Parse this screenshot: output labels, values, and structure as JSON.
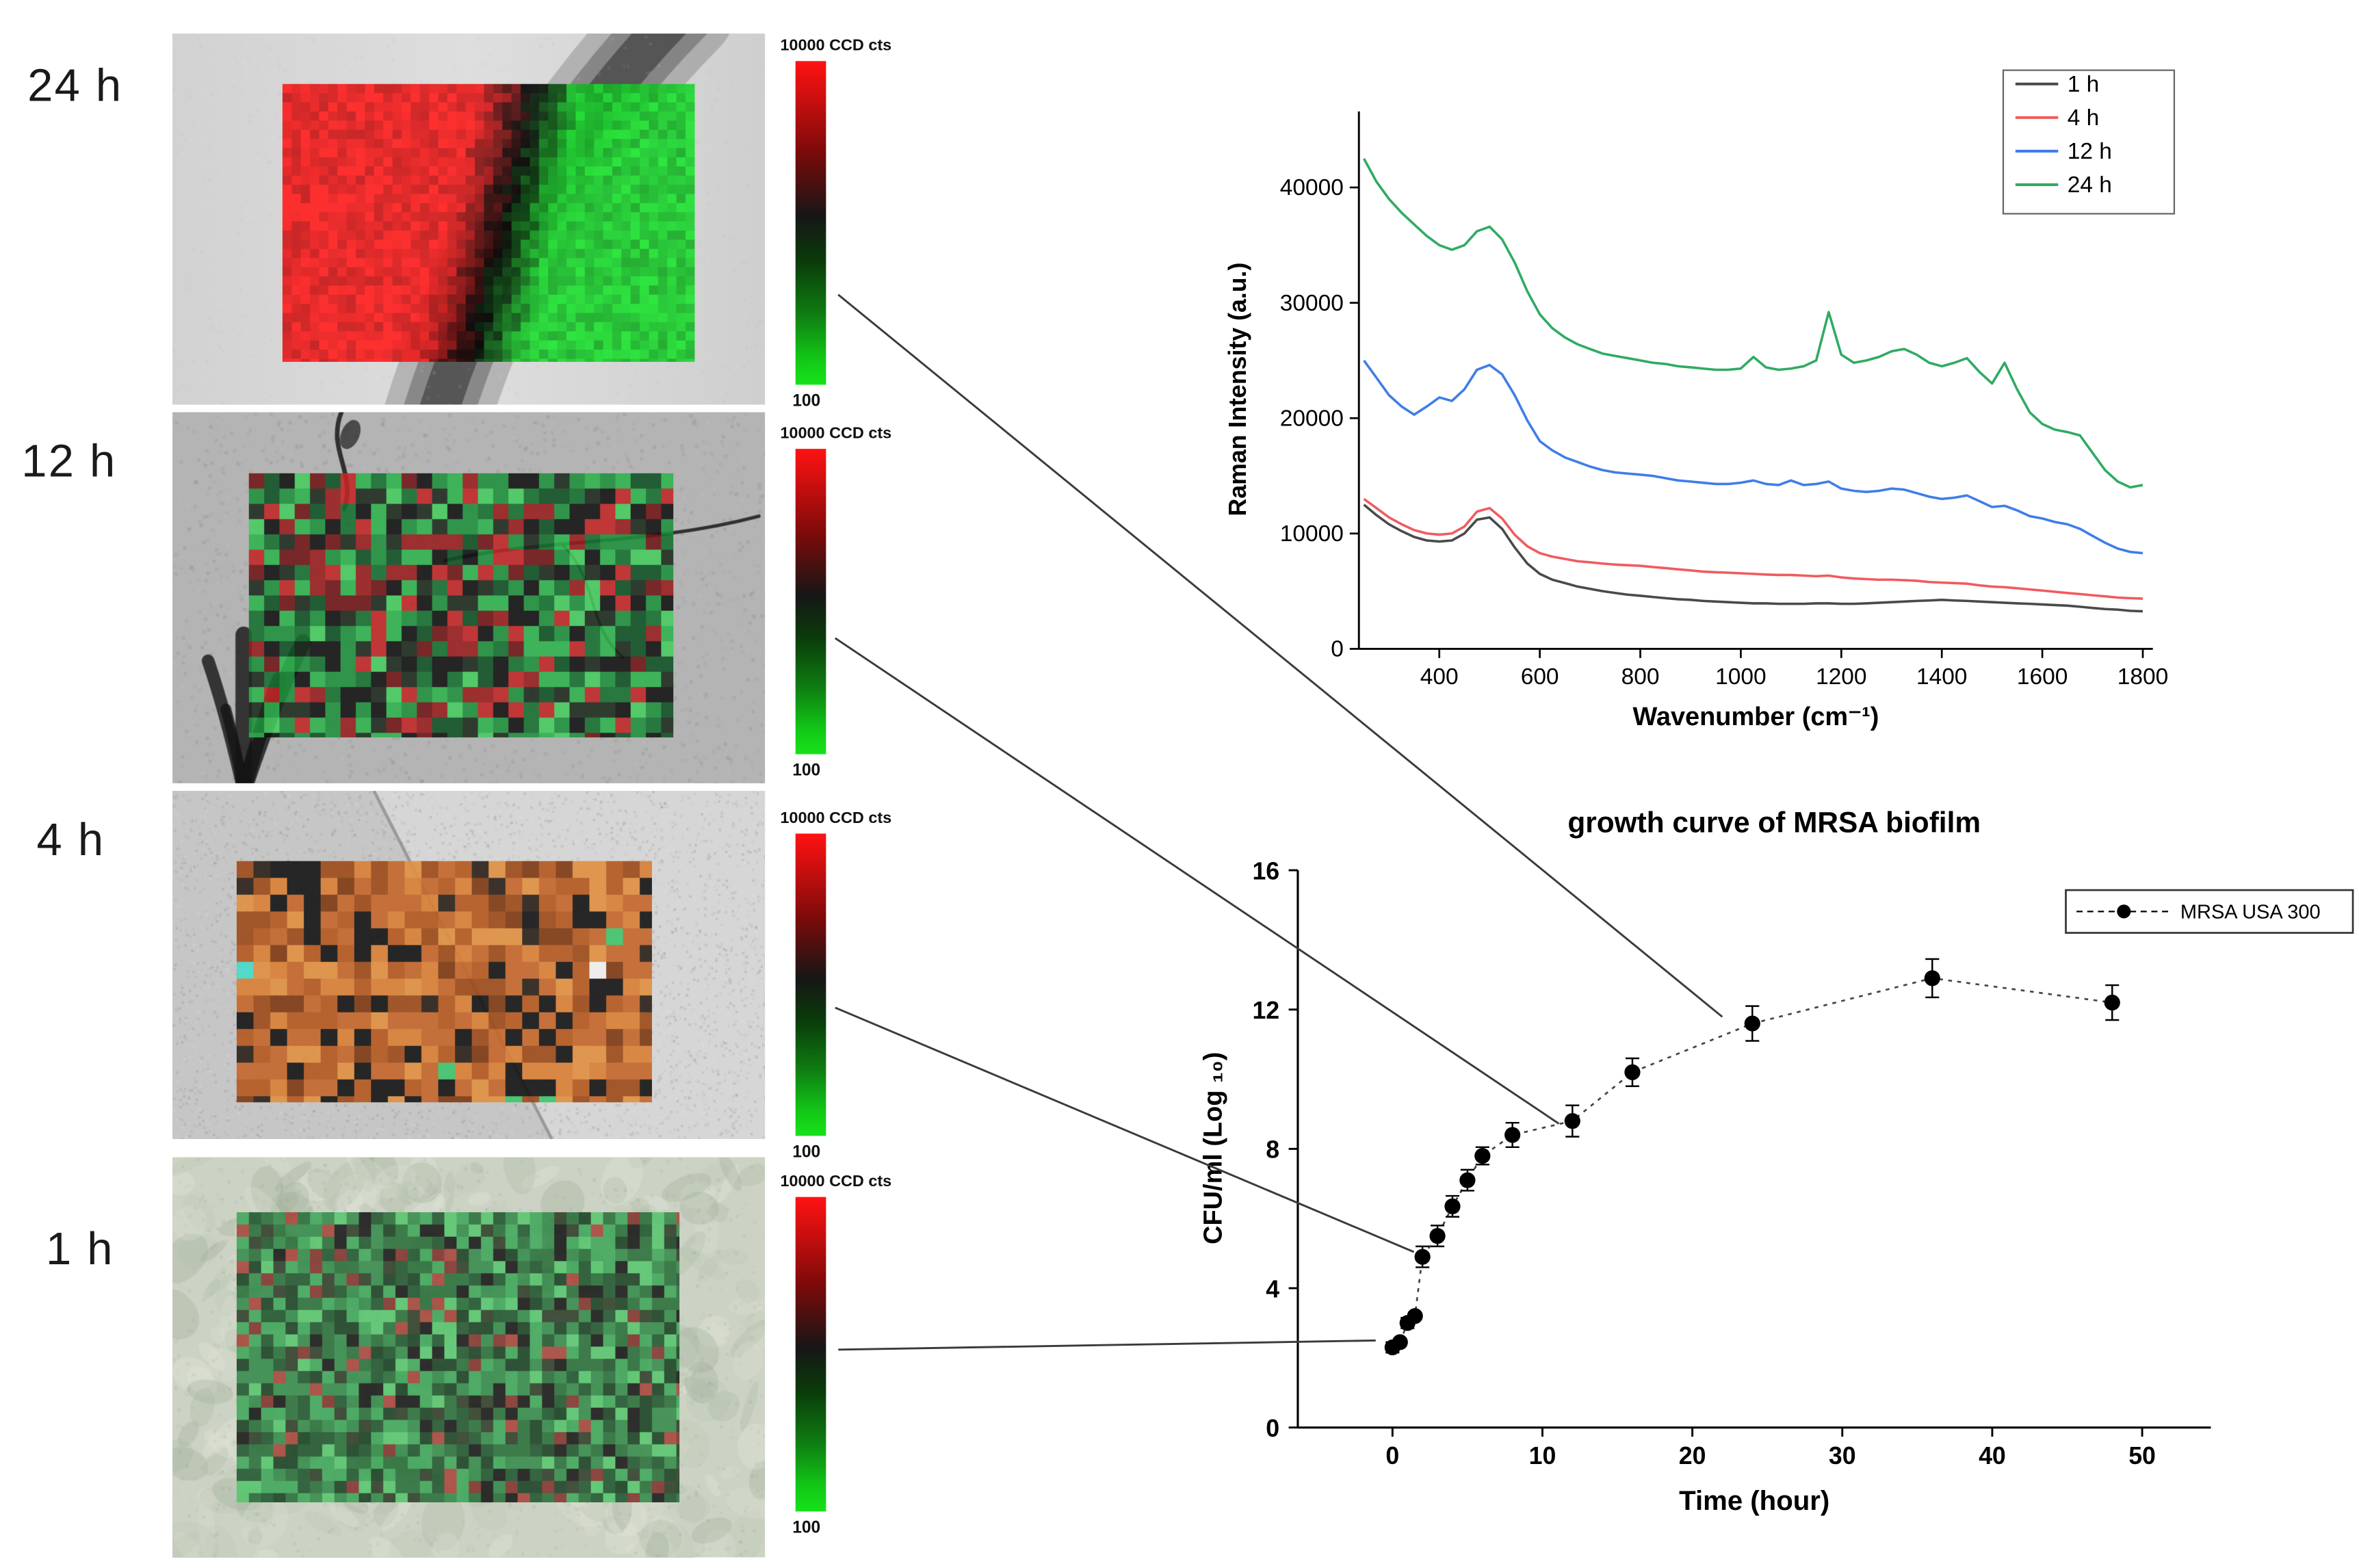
{
  "panels": [
    {
      "label": "24 h",
      "colorbar_top": "10000 CCD cts",
      "colorbar_bottom": "100",
      "photo_style": "diagonal-band",
      "map": {
        "type": "smooth",
        "cell": 6,
        "alpha": 0.93,
        "left": "#e81e1e",
        "mid": "#070707",
        "right": "#1dc92e"
      }
    },
    {
      "label": "12 h",
      "colorbar_top": "10000 CCD cts",
      "colorbar_bottom": "100",
      "photo_style": "cracked-gray",
      "map": {
        "type": "mosaic",
        "cell": 10,
        "alpha": 0.88,
        "palette": [
          [
            "#2eb34d",
            1.6
          ],
          [
            "#1f8f3c",
            1.6
          ],
          [
            "#157030",
            1.2
          ],
          [
            "#0e5123",
            1.0
          ],
          [
            "#45cc5e",
            0.7
          ],
          [
            "#c22525",
            1.0
          ],
          [
            "#981d1d",
            0.9
          ],
          [
            "#6f1515",
            0.7
          ],
          [
            "#111111",
            1.6
          ],
          [
            "#1e2a1e",
            1.2
          ]
        ]
      }
    },
    {
      "label": "4 h",
      "colorbar_top": "10000 CCD cts",
      "colorbar_bottom": "100",
      "photo_style": "grainy-diagonal",
      "map": {
        "type": "mosaic",
        "cell": 11,
        "alpha": 0.9,
        "palette": [
          [
            "#c4662a",
            2.2
          ],
          [
            "#b5581f",
            2.0
          ],
          [
            "#d97e35",
            1.6
          ],
          [
            "#9c4a18",
            1.4
          ],
          [
            "#e09040",
            1.0
          ],
          [
            "#7e3a12",
            0.8
          ],
          [
            "#141414",
            1.8
          ],
          [
            "#2a2118",
            0.8
          ],
          [
            "#3ec46a",
            0.12
          ],
          [
            "#47d9c9",
            0.1
          ],
          [
            "#efefef",
            0.08
          ]
        ]
      }
    },
    {
      "label": "1 h",
      "colorbar_top": "10000 CCD cts",
      "colorbar_bottom": "100",
      "photo_style": "mottled-green",
      "map": {
        "type": "mosaic",
        "cell": 8,
        "alpha": 0.82,
        "palette": [
          [
            "#35a352",
            1.8
          ],
          [
            "#2a8542",
            1.8
          ],
          [
            "#1e6831",
            1.6
          ],
          [
            "#154d24",
            1.4
          ],
          [
            "#0e3718",
            1.2
          ],
          [
            "#4fc468",
            1.0
          ],
          [
            "#0b0b0b",
            0.9
          ],
          [
            "#24331f",
            0.8
          ],
          [
            "#a63a31",
            0.5
          ],
          [
            "#7c2823",
            0.4
          ]
        ]
      }
    }
  ],
  "chart_data": [
    {
      "type": "line",
      "title": "",
      "xlabel": "Wavenumber (cm⁻¹)",
      "ylabel": "Raman Intensity (a.u.)",
      "xlim": [
        240,
        1820
      ],
      "ylim": [
        0,
        45000
      ],
      "xticks": [
        400,
        600,
        800,
        1000,
        1200,
        1400,
        1600,
        1800
      ],
      "yticks": [
        0,
        10000,
        20000,
        30000,
        40000
      ],
      "grid": false,
      "legend_position": "top-right",
      "x": [
        250,
        275,
        300,
        325,
        350,
        375,
        400,
        425,
        450,
        475,
        500,
        525,
        550,
        575,
        600,
        625,
        650,
        675,
        700,
        725,
        750,
        775,
        800,
        825,
        850,
        875,
        900,
        925,
        950,
        975,
        1000,
        1025,
        1050,
        1075,
        1100,
        1125,
        1150,
        1175,
        1200,
        1225,
        1250,
        1275,
        1300,
        1325,
        1350,
        1375,
        1400,
        1425,
        1450,
        1475,
        1500,
        1525,
        1550,
        1575,
        1600,
        1625,
        1650,
        1675,
        1700,
        1725,
        1750,
        1775,
        1800
      ],
      "series": [
        {
          "name": "1 h",
          "color": "#4a4a4a",
          "values": [
            12500,
            11600,
            10800,
            10200,
            9700,
            9400,
            9300,
            9400,
            10000,
            11200,
            11400,
            10400,
            8800,
            7400,
            6500,
            6000,
            5700,
            5400,
            5200,
            5000,
            4850,
            4700,
            4600,
            4500,
            4400,
            4300,
            4250,
            4150,
            4100,
            4050,
            4000,
            3950,
            3950,
            3900,
            3900,
            3900,
            3950,
            3950,
            3900,
            3900,
            3950,
            4000,
            4050,
            4100,
            4150,
            4200,
            4250,
            4200,
            4150,
            4100,
            4050,
            4000,
            3950,
            3900,
            3850,
            3800,
            3750,
            3650,
            3550,
            3450,
            3400,
            3300,
            3250
          ]
        },
        {
          "name": "4 h",
          "color": "#f05b5e",
          "values": [
            13000,
            12200,
            11400,
            10800,
            10300,
            10000,
            9900,
            10000,
            10600,
            11900,
            12200,
            11300,
            9900,
            8900,
            8300,
            8000,
            7800,
            7600,
            7500,
            7400,
            7300,
            7250,
            7200,
            7100,
            7000,
            6900,
            6800,
            6700,
            6650,
            6600,
            6550,
            6500,
            6450,
            6400,
            6400,
            6350,
            6300,
            6350,
            6200,
            6100,
            6050,
            6000,
            6000,
            5950,
            5900,
            5800,
            5750,
            5700,
            5650,
            5500,
            5400,
            5350,
            5250,
            5150,
            5050,
            4950,
            4850,
            4750,
            4650,
            4550,
            4450,
            4400,
            4350
          ]
        },
        {
          "name": "12 h",
          "color": "#3f7de8",
          "values": [
            25000,
            23500,
            22000,
            21000,
            20300,
            21000,
            21800,
            21500,
            22500,
            24200,
            24600,
            23800,
            22000,
            19800,
            18000,
            17200,
            16600,
            16200,
            15800,
            15500,
            15300,
            15200,
            15100,
            15000,
            14800,
            14600,
            14500,
            14400,
            14300,
            14300,
            14400,
            14600,
            14300,
            14200,
            14600,
            14200,
            14300,
            14500,
            13900,
            13700,
            13600,
            13700,
            13900,
            13800,
            13500,
            13200,
            13000,
            13100,
            13300,
            12800,
            12300,
            12400,
            12000,
            11500,
            11300,
            11000,
            10800,
            10400,
            9800,
            9200,
            8700,
            8400,
            8300
          ]
        },
        {
          "name": "24 h",
          "color": "#2fab63",
          "values": [
            42500,
            40500,
            39000,
            37800,
            36800,
            35800,
            35000,
            34600,
            35000,
            36200,
            36600,
            35500,
            33500,
            31000,
            29000,
            27800,
            27000,
            26400,
            26000,
            25600,
            25400,
            25200,
            25000,
            24800,
            24700,
            24500,
            24400,
            24300,
            24200,
            24200,
            24300,
            25300,
            24400,
            24200,
            24300,
            24500,
            25000,
            29200,
            25500,
            24800,
            25000,
            25300,
            25800,
            26000,
            25500,
            24800,
            24500,
            24800,
            25200,
            24000,
            23000,
            24800,
            22500,
            20500,
            19500,
            19000,
            18800,
            18500,
            17000,
            15500,
            14500,
            14000,
            14200
          ]
        }
      ]
    },
    {
      "type": "scatter",
      "title": "growth curve of MRSA biofilm",
      "xlabel": "Time (hour)",
      "ylabel": "CFU/ml (Log ₁₀)",
      "xlim": [
        -6,
        55
      ],
      "ylim": [
        0,
        16
      ],
      "xticks": [
        0,
        10,
        20,
        30,
        40,
        50
      ],
      "yticks": [
        0,
        4,
        8,
        12,
        16
      ],
      "grid": false,
      "legend_position": "top-right",
      "series": [
        {
          "name": "MRSA USA 300",
          "color": "#000000",
          "line_style": "dashed",
          "marker": "filled-circle",
          "x": [
            0,
            0.5,
            1,
            1.5,
            2,
            3,
            4,
            5,
            6,
            8,
            12,
            16,
            24,
            36,
            48
          ],
          "y": [
            2.3,
            2.45,
            3.0,
            3.2,
            4.9,
            5.5,
            6.35,
            7.1,
            7.8,
            8.4,
            8.8,
            10.2,
            11.6,
            12.9,
            12.2
          ],
          "yerr": [
            0.15,
            0.1,
            0.15,
            0.1,
            0.3,
            0.3,
            0.3,
            0.3,
            0.25,
            0.35,
            0.45,
            0.4,
            0.5,
            0.55,
            0.5
          ]
        }
      ]
    }
  ]
}
